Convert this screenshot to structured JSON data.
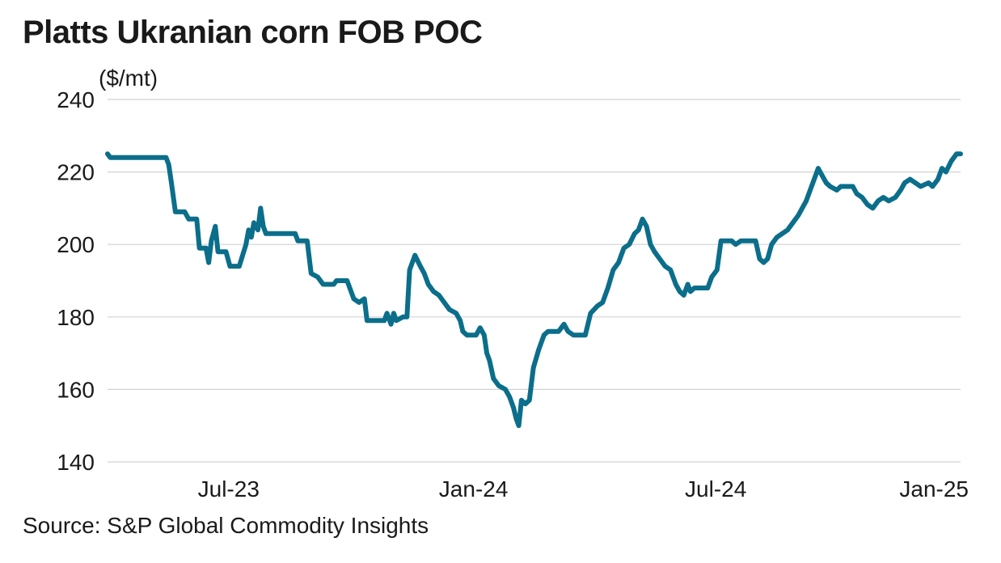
{
  "title": "Platts Ukranian corn FOB POC",
  "source": "Source: S&P Global Commodity Insights",
  "line_color": "#0b6e8a",
  "chart_data": {
    "type": "line",
    "title": "Platts Ukranian corn FOB POC",
    "ylabel": "($/mt)",
    "xlabel": "",
    "ylim": [
      140,
      240
    ],
    "yticks": [
      140,
      160,
      180,
      200,
      220,
      240
    ],
    "xticks": [
      {
        "label": "Jul-23",
        "date": "2023-07-01"
      },
      {
        "label": "Jan-24",
        "date": "2024-01-01"
      },
      {
        "label": "Jul-24",
        "date": "2024-07-01"
      },
      {
        "label": "Jan-25",
        "date": "2025-01-01"
      }
    ],
    "xlim": [
      "2023-04-01",
      "2025-01-01"
    ],
    "grid": true,
    "series": [
      {
        "points": [
          [
            "2023-04-01",
            225
          ],
          [
            "2023-04-03",
            224
          ],
          [
            "2023-05-15",
            224
          ],
          [
            "2023-05-17",
            222
          ],
          [
            "2023-05-19",
            217
          ],
          [
            "2023-05-22",
            209
          ],
          [
            "2023-05-29",
            209
          ],
          [
            "2023-06-01",
            207
          ],
          [
            "2023-06-07",
            207
          ],
          [
            "2023-06-09",
            199
          ],
          [
            "2023-06-14",
            199
          ],
          [
            "2023-06-16",
            195
          ],
          [
            "2023-06-18",
            201
          ],
          [
            "2023-06-21",
            205
          ],
          [
            "2023-06-23",
            198
          ],
          [
            "2023-06-29",
            198
          ],
          [
            "2023-07-02",
            194
          ],
          [
            "2023-07-09",
            194
          ],
          [
            "2023-07-14",
            200
          ],
          [
            "2023-07-16",
            204
          ],
          [
            "2023-07-18",
            202
          ],
          [
            "2023-07-20",
            206
          ],
          [
            "2023-07-23",
            204
          ],
          [
            "2023-07-25",
            210
          ],
          [
            "2023-07-27",
            205
          ],
          [
            "2023-07-29",
            203
          ],
          [
            "2023-08-20",
            203
          ],
          [
            "2023-08-22",
            201
          ],
          [
            "2023-08-29",
            201
          ],
          [
            "2023-09-01",
            192
          ],
          [
            "2023-09-06",
            191
          ],
          [
            "2023-09-10",
            189
          ],
          [
            "2023-09-18",
            189
          ],
          [
            "2023-09-20",
            190
          ],
          [
            "2023-09-28",
            190
          ],
          [
            "2023-10-03",
            185
          ],
          [
            "2023-10-07",
            184
          ],
          [
            "2023-10-11",
            185
          ],
          [
            "2023-10-13",
            179
          ],
          [
            "2023-10-26",
            179
          ],
          [
            "2023-10-28",
            181
          ],
          [
            "2023-10-31",
            178
          ],
          [
            "2023-11-02",
            181
          ],
          [
            "2023-11-04",
            179
          ],
          [
            "2023-11-09",
            180
          ],
          [
            "2023-11-12",
            180
          ],
          [
            "2023-11-14",
            193
          ],
          [
            "2023-11-18",
            197
          ],
          [
            "2023-11-22",
            194
          ],
          [
            "2023-11-25",
            192
          ],
          [
            "2023-11-28",
            189
          ],
          [
            "2023-12-02",
            187
          ],
          [
            "2023-12-06",
            186
          ],
          [
            "2023-12-10",
            184
          ],
          [
            "2023-12-14",
            182
          ],
          [
            "2023-12-19",
            181
          ],
          [
            "2023-12-22",
            179
          ],
          [
            "2023-12-24",
            176
          ],
          [
            "2023-12-27",
            175
          ],
          [
            "2024-01-03",
            175
          ],
          [
            "2024-01-06",
            177
          ],
          [
            "2024-01-09",
            175
          ],
          [
            "2024-01-11",
            170
          ],
          [
            "2024-01-13",
            168
          ],
          [
            "2024-01-16",
            163
          ],
          [
            "2024-01-20",
            161
          ],
          [
            "2024-01-25",
            160
          ],
          [
            "2024-01-28",
            158
          ],
          [
            "2024-01-31",
            155
          ],
          [
            "2024-02-02",
            152
          ],
          [
            "2024-02-04",
            150
          ],
          [
            "2024-02-06",
            157
          ],
          [
            "2024-02-09",
            156
          ],
          [
            "2024-02-12",
            157
          ],
          [
            "2024-02-15",
            166
          ],
          [
            "2024-02-19",
            171
          ],
          [
            "2024-02-23",
            175
          ],
          [
            "2024-02-26",
            176
          ],
          [
            "2024-03-05",
            176
          ],
          [
            "2024-03-09",
            178
          ],
          [
            "2024-03-12",
            176
          ],
          [
            "2024-03-16",
            175
          ],
          [
            "2024-03-25",
            175
          ],
          [
            "2024-03-29",
            181
          ],
          [
            "2024-04-03",
            183
          ],
          [
            "2024-04-07",
            184
          ],
          [
            "2024-04-11",
            188
          ],
          [
            "2024-04-15",
            193
          ],
          [
            "2024-04-19",
            195
          ],
          [
            "2024-04-23",
            199
          ],
          [
            "2024-04-27",
            200
          ],
          [
            "2024-05-01",
            203
          ],
          [
            "2024-05-04",
            204
          ],
          [
            "2024-05-07",
            207
          ],
          [
            "2024-05-10",
            205
          ],
          [
            "2024-05-13",
            200
          ],
          [
            "2024-05-16",
            198
          ],
          [
            "2024-05-20",
            196
          ],
          [
            "2024-05-24",
            194
          ],
          [
            "2024-05-28",
            193
          ],
          [
            "2024-06-01",
            189
          ],
          [
            "2024-06-04",
            187
          ],
          [
            "2024-06-07",
            186
          ],
          [
            "2024-06-10",
            189
          ],
          [
            "2024-06-12",
            187
          ],
          [
            "2024-06-15",
            188
          ],
          [
            "2024-06-25",
            188
          ],
          [
            "2024-06-28",
            191
          ],
          [
            "2024-07-02",
            193
          ],
          [
            "2024-07-05",
            201
          ],
          [
            "2024-07-13",
            201
          ],
          [
            "2024-07-16",
            200
          ],
          [
            "2024-07-20",
            201
          ],
          [
            "2024-07-28",
            201
          ],
          [
            "2024-07-31",
            201
          ],
          [
            "2024-08-03",
            196
          ],
          [
            "2024-08-06",
            195
          ],
          [
            "2024-08-09",
            196
          ],
          [
            "2024-08-12",
            200
          ],
          [
            "2024-08-16",
            202
          ],
          [
            "2024-08-20",
            203
          ],
          [
            "2024-08-24",
            204
          ],
          [
            "2024-08-28",
            206
          ],
          [
            "2024-09-01",
            208
          ],
          [
            "2024-09-04",
            210
          ],
          [
            "2024-09-07",
            212
          ],
          [
            "2024-09-10",
            215
          ],
          [
            "2024-09-13",
            218
          ],
          [
            "2024-09-16",
            221
          ],
          [
            "2024-09-19",
            219
          ],
          [
            "2024-09-22",
            217
          ],
          [
            "2024-09-25",
            216
          ],
          [
            "2024-09-30",
            215
          ],
          [
            "2024-10-03",
            216
          ],
          [
            "2024-10-12",
            216
          ],
          [
            "2024-10-15",
            214
          ],
          [
            "2024-10-19",
            213
          ],
          [
            "2024-10-23",
            211
          ],
          [
            "2024-10-27",
            210
          ],
          [
            "2024-10-31",
            212
          ],
          [
            "2024-11-04",
            213
          ],
          [
            "2024-11-08",
            212
          ],
          [
            "2024-11-13",
            213
          ],
          [
            "2024-11-17",
            215
          ],
          [
            "2024-11-20",
            217
          ],
          [
            "2024-11-24",
            218
          ],
          [
            "2024-11-28",
            217
          ],
          [
            "2024-12-02",
            216
          ],
          [
            "2024-12-08",
            217
          ],
          [
            "2024-12-11",
            216
          ],
          [
            "2024-12-15",
            218
          ],
          [
            "2024-12-18",
            221
          ],
          [
            "2024-12-21",
            220
          ],
          [
            "2024-12-25",
            223
          ],
          [
            "2024-12-29",
            225
          ],
          [
            "2025-01-01",
            225
          ]
        ]
      }
    ]
  }
}
